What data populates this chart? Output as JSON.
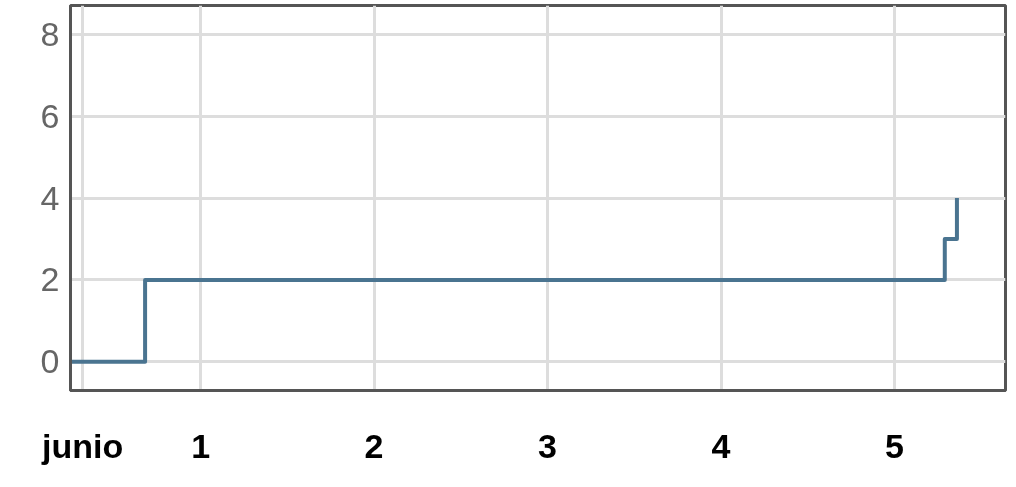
{
  "chart_data": {
    "type": "step",
    "x": [
      0.25,
      0.68,
      5.29,
      5.36
    ],
    "series": [
      {
        "color": "#4a7490",
        "values": [
          0,
          2,
          3,
          4
        ]
      }
    ],
    "xlim": [
      0.25,
      5.64
    ],
    "xticks": [
      {
        "value": 0.32,
        "label": "junio"
      },
      1,
      2,
      3,
      4,
      5
    ],
    "ylim": [
      -0.7,
      8.7
    ],
    "yticks": [
      0,
      2,
      4,
      6,
      8
    ],
    "grid": true
  }
}
